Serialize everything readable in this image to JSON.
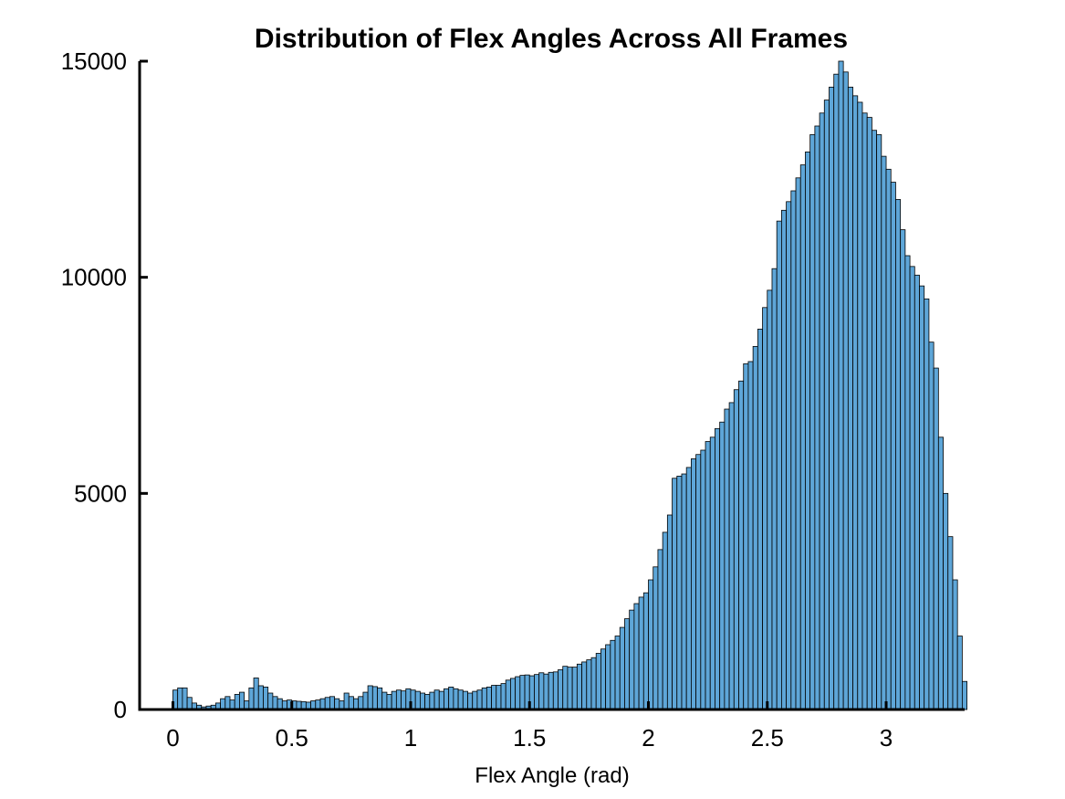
{
  "chart_data": {
    "type": "bar",
    "title": "Distribution of Flex Angles Across All Frames",
    "xlabel": "Flex Angle (rad)",
    "ylabel": "",
    "xlim": [
      -0.14,
      3.33
    ],
    "ylim": [
      0,
      15000
    ],
    "xticks": [
      0,
      0.5,
      1,
      1.5,
      2,
      2.5,
      3
    ],
    "xtick_labels": [
      "0",
      "0.5",
      "1",
      "1.5",
      "2",
      "2.5",
      "3"
    ],
    "yticks": [
      0,
      5000,
      10000,
      15000
    ],
    "ytick_labels": [
      "0",
      "5000",
      "10000",
      "15000"
    ],
    "grid": false,
    "bar_color": "#5ea6d8",
    "edge_color": "#000000",
    "bin_start": 0,
    "bin_width": 0.02,
    "values": [
      450,
      500,
      500,
      280,
      150,
      100,
      60,
      80,
      100,
      150,
      250,
      300,
      220,
      350,
      400,
      200,
      500,
      730,
      550,
      520,
      380,
      300,
      250,
      200,
      220,
      200,
      190,
      180,
      170,
      200,
      220,
      250,
      280,
      300,
      250,
      200,
      380,
      300,
      250,
      300,
      400,
      550,
      530,
      500,
      400,
      350,
      420,
      450,
      430,
      480,
      450,
      420,
      380,
      350,
      400,
      450,
      420,
      480,
      520,
      480,
      450,
      420,
      380,
      420,
      450,
      500,
      520,
      560,
      560,
      600,
      680,
      720,
      760,
      790,
      800,
      780,
      810,
      850,
      820,
      860,
      870,
      920,
      1000,
      980,
      980,
      1050,
      1100,
      1150,
      1200,
      1300,
      1400,
      1500,
      1600,
      1700,
      1900,
      2100,
      2300,
      2450,
      2600,
      2700,
      3000,
      3300,
      3700,
      4100,
      4500,
      5350,
      5400,
      5450,
      5600,
      5800,
      5900,
      6000,
      6200,
      6300,
      6500,
      6650,
      6950,
      7100,
      7400,
      7600,
      8000,
      8050,
      8400,
      8800,
      9300,
      9700,
      10200,
      11300,
      11550,
      11750,
      12000,
      12300,
      12600,
      12900,
      13300,
      13500,
      13800,
      14100,
      14400,
      14700,
      15000,
      14750,
      14400,
      14200,
      14050,
      13800,
      13700,
      13400,
      13300,
      12800,
      12500,
      12200,
      11800,
      11100,
      10500,
      10250,
      10050,
      9800,
      9500,
      8500,
      7900,
      6300,
      5000,
      4000,
      3000,
      1700,
      650
    ]
  }
}
